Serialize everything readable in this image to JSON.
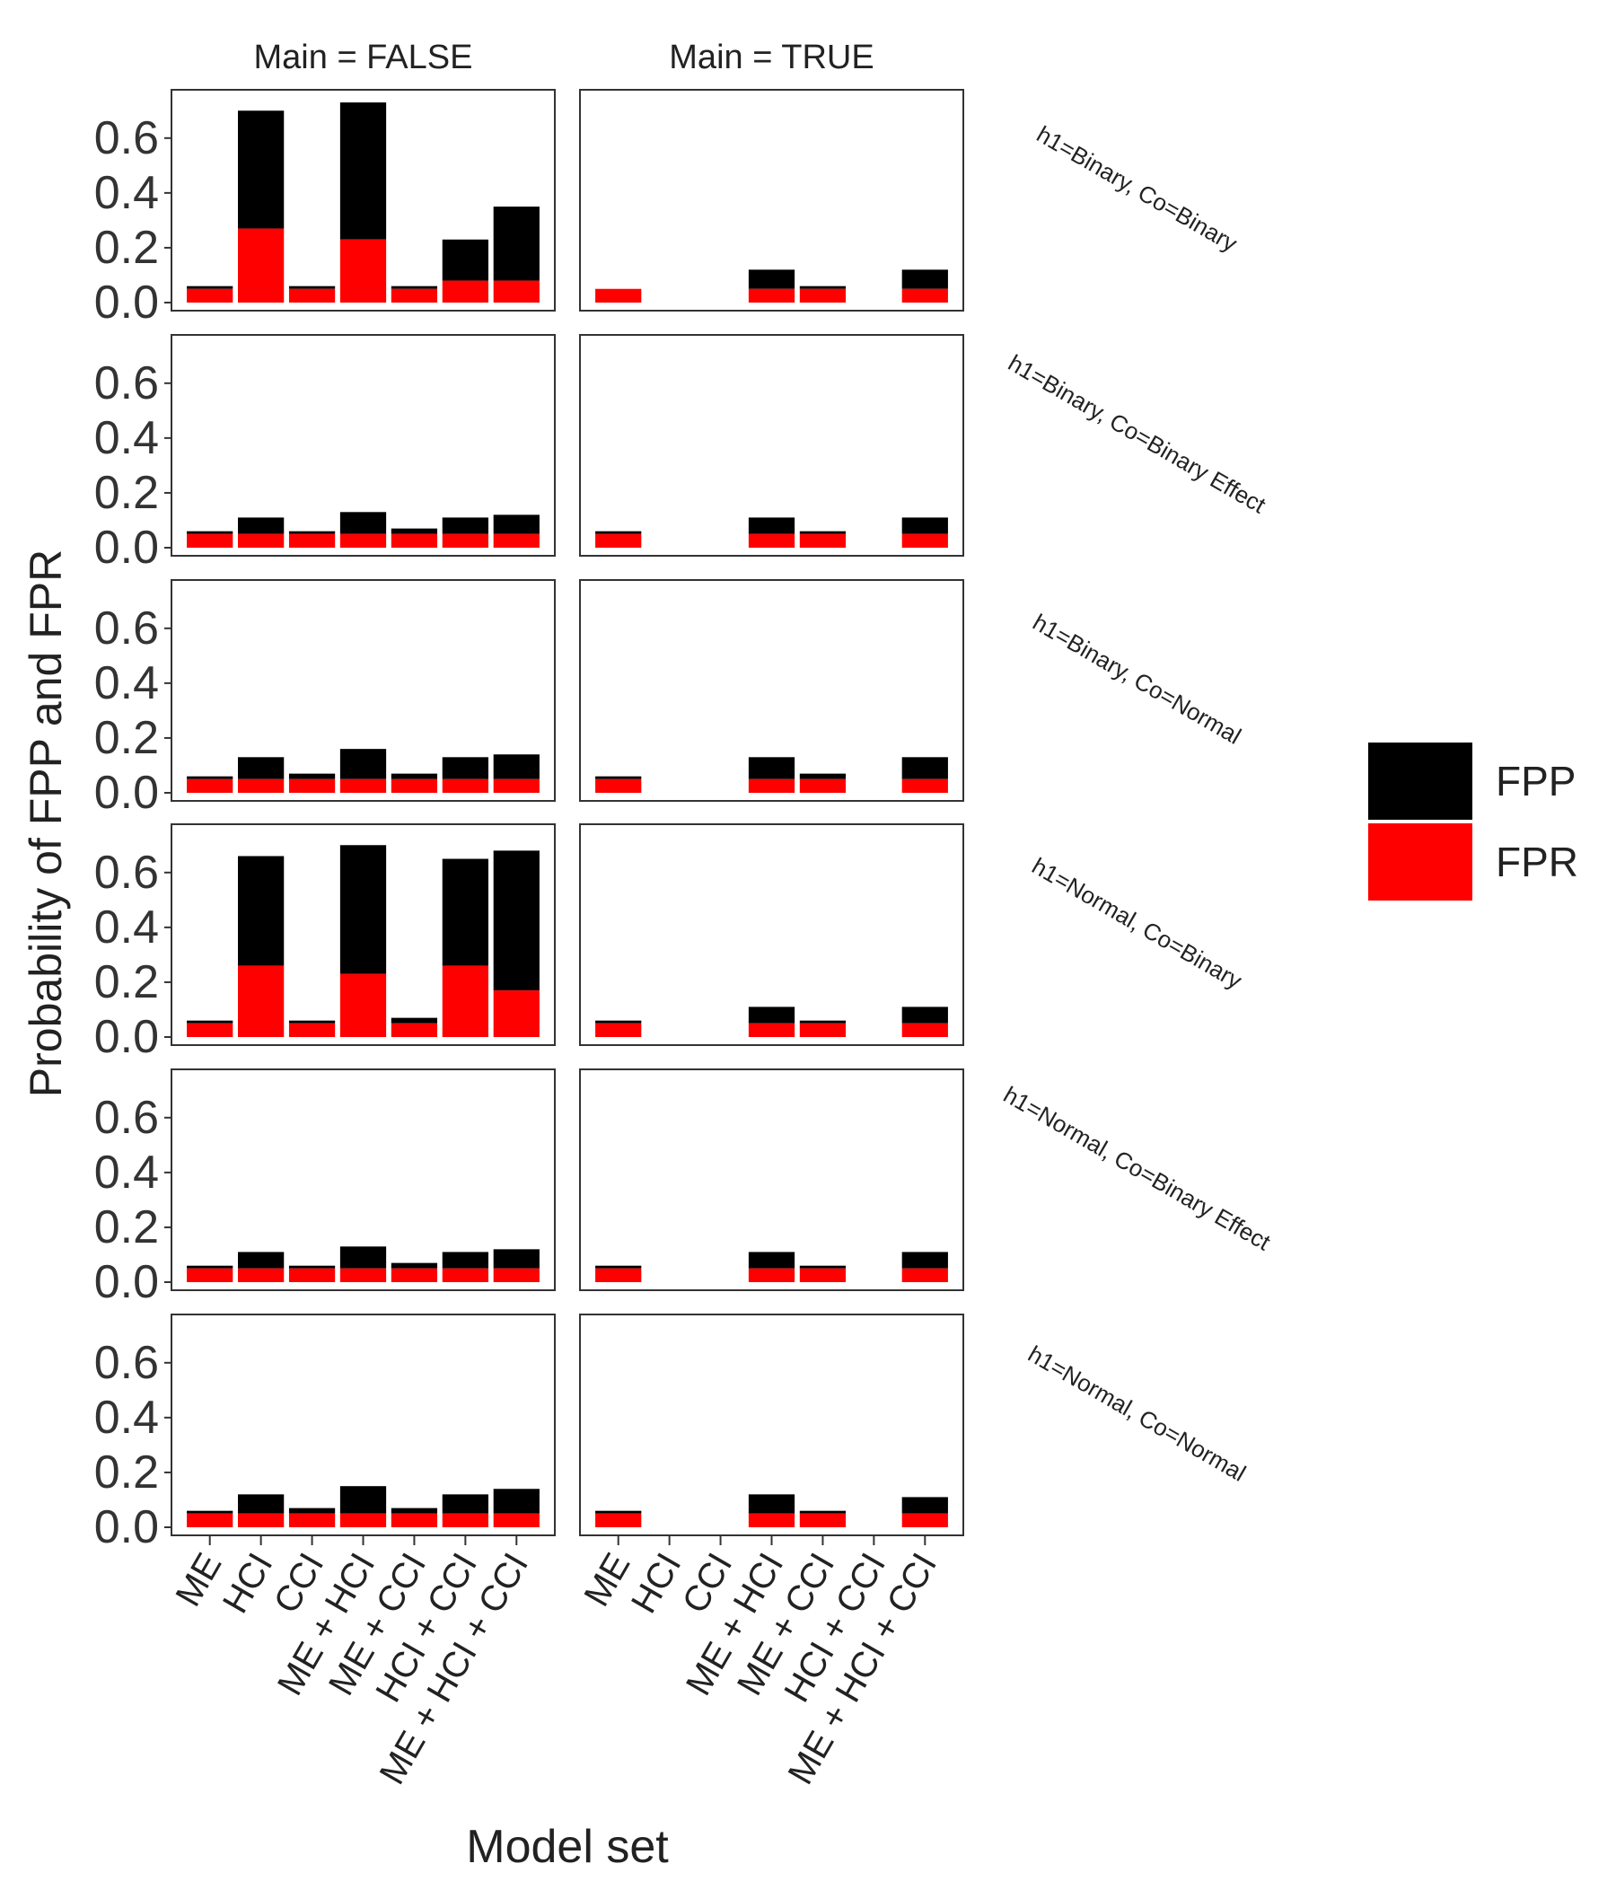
{
  "chart_data": {
    "type": "bar",
    "stacked": true,
    "ylabel": "Probability of FPP and FPR",
    "xlabel": "Model set",
    "ylim": [
      0,
      0.75
    ],
    "yticks": [
      "0.0",
      "0.2",
      "0.4",
      "0.6"
    ],
    "ytick_values": [
      0.0,
      0.2,
      0.4,
      0.6
    ],
    "categories": [
      "ME",
      "HCI",
      "CCI",
      "ME + HCI",
      "ME + CCI",
      "HCI + CCI",
      "ME + HCI + CCI"
    ],
    "column_facets": [
      "Main = FALSE",
      "Main = TRUE"
    ],
    "row_facets": [
      "h1=Binary, Co=Binary",
      "h1=Binary, Co=Binary Effect",
      "h1=Binary, Co=Normal",
      "h1=Normal, Co=Binary",
      "h1=Normal, Co=Binary Effect",
      "h1=Normal, Co=Normal"
    ],
    "legend": {
      "position": "right",
      "entries": [
        {
          "name": "FPP",
          "color": "#000000"
        },
        {
          "name": "FPR",
          "color": "#ff0000"
        }
      ]
    },
    "series": [
      {
        "name": "FPP",
        "color": "#000000",
        "note_values": "total bar height (FPP) per facet, row-major: [row][column][category]; null = no bar",
        "values": [
          [
            [
              0.06,
              0.7,
              0.06,
              0.73,
              0.06,
              0.23,
              0.35
            ],
            [
              0.05,
              null,
              null,
              0.12,
              0.06,
              null,
              0.12
            ]
          ],
          [
            [
              0.06,
              0.11,
              0.06,
              0.13,
              0.07,
              0.11,
              0.12
            ],
            [
              0.06,
              null,
              null,
              0.11,
              0.06,
              null,
              0.11
            ]
          ],
          [
            [
              0.06,
              0.13,
              0.07,
              0.16,
              0.07,
              0.13,
              0.14
            ],
            [
              0.06,
              null,
              null,
              0.13,
              0.07,
              null,
              0.13
            ]
          ],
          [
            [
              0.06,
              0.66,
              0.06,
              0.7,
              0.07,
              0.65,
              0.68
            ],
            [
              0.06,
              null,
              null,
              0.11,
              0.06,
              null,
              0.11
            ]
          ],
          [
            [
              0.06,
              0.11,
              0.06,
              0.13,
              0.07,
              0.11,
              0.12
            ],
            [
              0.06,
              null,
              null,
              0.11,
              0.06,
              null,
              0.11
            ]
          ],
          [
            [
              0.06,
              0.12,
              0.07,
              0.15,
              0.07,
              0.12,
              0.14
            ],
            [
              0.06,
              null,
              null,
              0.12,
              0.06,
              null,
              0.11
            ]
          ]
        ]
      },
      {
        "name": "FPR",
        "color": "#ff0000",
        "note_values": "red segment height (FPR) per facet, row-major: [row][column][category]; null = no bar",
        "values": [
          [
            [
              0.05,
              0.27,
              0.05,
              0.23,
              0.05,
              0.08,
              0.08
            ],
            [
              0.05,
              null,
              null,
              0.05,
              0.05,
              null,
              0.05
            ]
          ],
          [
            [
              0.05,
              0.05,
              0.05,
              0.05,
              0.05,
              0.05,
              0.05
            ],
            [
              0.05,
              null,
              null,
              0.05,
              0.05,
              null,
              0.05
            ]
          ],
          [
            [
              0.05,
              0.05,
              0.05,
              0.05,
              0.05,
              0.05,
              0.05
            ],
            [
              0.05,
              null,
              null,
              0.05,
              0.05,
              null,
              0.05
            ]
          ],
          [
            [
              0.05,
              0.26,
              0.05,
              0.23,
              0.05,
              0.26,
              0.17
            ],
            [
              0.05,
              null,
              null,
              0.05,
              0.05,
              null,
              0.05
            ]
          ],
          [
            [
              0.05,
              0.05,
              0.05,
              0.05,
              0.05,
              0.05,
              0.05
            ],
            [
              0.05,
              null,
              null,
              0.05,
              0.05,
              null,
              0.05
            ]
          ],
          [
            [
              0.05,
              0.05,
              0.05,
              0.05,
              0.05,
              0.05,
              0.05
            ],
            [
              0.05,
              null,
              null,
              0.05,
              0.05,
              null,
              0.05
            ]
          ]
        ]
      }
    ]
  }
}
